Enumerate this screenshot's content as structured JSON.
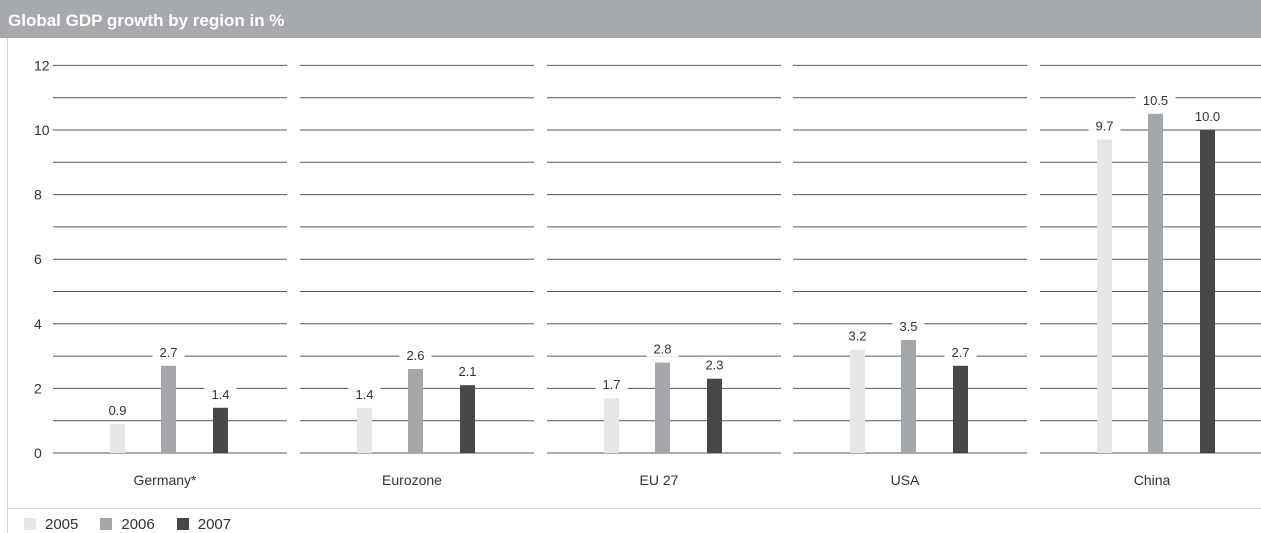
{
  "title": "Global GDP growth by region in %",
  "chart_data": {
    "type": "bar",
    "title": "Global GDP growth by region in %",
    "categories": [
      "Germany*",
      "Eurozone",
      "EU 27",
      "USA",
      "China"
    ],
    "series": [
      {
        "name": "2005",
        "color": "#e4e6e8",
        "values": [
          0.9,
          1.4,
          1.7,
          3.2,
          9.7
        ]
      },
      {
        "name": "2006",
        "color": "#a3a7aa",
        "values": [
          2.7,
          2.6,
          2.8,
          3.5,
          10.5
        ]
      },
      {
        "name": "2007",
        "color": "#454749",
        "values": [
          1.4,
          2.1,
          2.3,
          2.7,
          10.0
        ]
      }
    ],
    "value_labels": [
      [
        "0.9",
        "1.4",
        "1.7",
        "3.2",
        "9.7"
      ],
      [
        "2.7",
        "2.6",
        "2.8",
        "3.5",
        "10.5"
      ],
      [
        "1.4",
        "2.1",
        "2.3",
        "2.7",
        "10.0"
      ]
    ],
    "y_ticks": [
      "0",
      "2",
      "4",
      "6",
      "8",
      "10",
      "12"
    ],
    "ylim": [
      0,
      12
    ],
    "grid": true,
    "legend_position": "bottom-left",
    "xlabel": "",
    "ylabel": ""
  }
}
